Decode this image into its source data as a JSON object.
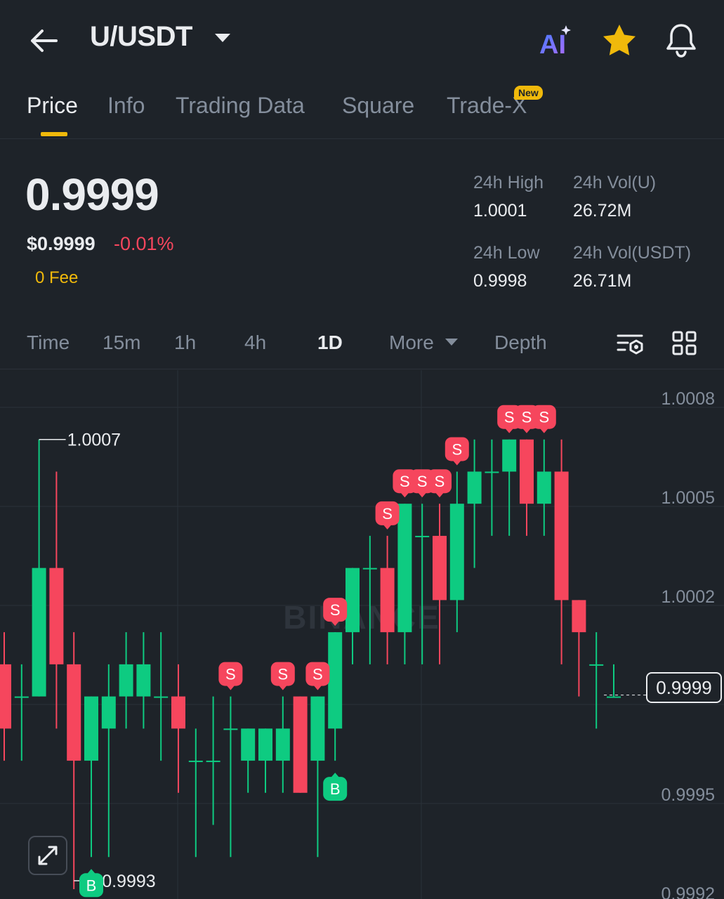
{
  "header": {
    "pair": "U/USDT",
    "ai_label": "AI"
  },
  "tabs": [
    {
      "label": "Price",
      "active": true
    },
    {
      "label": "Info"
    },
    {
      "label": "Trading Data"
    },
    {
      "label": "Square"
    },
    {
      "label": "Trade-X",
      "badge": "New"
    }
  ],
  "ticker": {
    "last_price": "0.9999",
    "usd_price": "$0.9999",
    "change_pct": "-0.01%",
    "fee_label": "0 Fee",
    "high_label": "24h High",
    "high_value": "1.0001",
    "vol_u_label": "24h Vol(U)",
    "vol_u_value": "26.72M",
    "low_label": "24h Low",
    "low_value": "0.9998",
    "vol_usdt_label": "24h Vol(USDT)",
    "vol_usdt_value": "26.71M"
  },
  "timeframes": [
    {
      "label": "Time"
    },
    {
      "label": "15m"
    },
    {
      "label": "1h"
    },
    {
      "label": "4h"
    },
    {
      "label": "1D",
      "active": true
    },
    {
      "label": "More"
    },
    {
      "label": "Depth"
    }
  ],
  "colors": {
    "up": "#0ecb81",
    "down": "#f6465d",
    "accent": "#f0b90b",
    "background": "#1e2329"
  },
  "icons": [
    "back-arrow-icon",
    "dropdown-caret-icon",
    "ai-icon",
    "star-icon",
    "bell-icon",
    "chart-settings-icon",
    "grid-layout-icon",
    "expand-icon"
  ],
  "chart_data": {
    "type": "candlestick",
    "watermark": "BINANCE",
    "y_ticks": [
      "1.0008",
      "1.0005",
      "1.0002",
      "0.9999",
      "0.9995",
      "0.9992"
    ],
    "ylim": [
      0.9992,
      1.0008
    ],
    "current_price": "0.9999",
    "max_label": "1.0007",
    "min_label": "0.9993",
    "candles": [
      {
        "o": 1.0,
        "h": 1.0001,
        "l": 0.9997,
        "c": 0.9998
      },
      {
        "o": 0.9999,
        "h": 1.0,
        "l": 0.9997,
        "c": 0.9999
      },
      {
        "o": 0.9999,
        "h": 1.0007,
        "l": 0.9999,
        "c": 1.0003
      },
      {
        "o": 1.0003,
        "h": 1.0006,
        "l": 0.9998,
        "c": 1.0
      },
      {
        "o": 1.0,
        "h": 1.0001,
        "l": 0.9993,
        "c": 0.9997
      },
      {
        "o": 0.9997,
        "h": 0.9999,
        "l": 0.9994,
        "c": 0.9999
      },
      {
        "o": 0.9998,
        "h": 1.0,
        "l": 0.9994,
        "c": 0.9999
      },
      {
        "o": 0.9999,
        "h": 1.0001,
        "l": 0.9998,
        "c": 1.0
      },
      {
        "o": 0.9999,
        "h": 1.0001,
        "l": 0.9998,
        "c": 1.0
      },
      {
        "o": 0.9999,
        "h": 1.0001,
        "l": 0.9997,
        "c": 0.9999
      },
      {
        "o": 0.9999,
        "h": 1.0,
        "l": 0.9996,
        "c": 0.9998
      },
      {
        "o": 0.9997,
        "h": 0.9998,
        "l": 0.9994,
        "c": 0.9997
      },
      {
        "o": 0.9997,
        "h": 0.9999,
        "l": 0.9995,
        "c": 0.9997
      },
      {
        "o": 0.9998,
        "h": 0.9999,
        "l": 0.9994,
        "c": 0.9998
      },
      {
        "o": 0.9997,
        "h": 0.9998,
        "l": 0.9996,
        "c": 0.9998
      },
      {
        "o": 0.9997,
        "h": 0.9998,
        "l": 0.9996,
        "c": 0.9998
      },
      {
        "o": 0.9997,
        "h": 0.9999,
        "l": 0.9996,
        "c": 0.9998
      },
      {
        "o": 0.9999,
        "h": 0.9999,
        "l": 0.9996,
        "c": 0.9996
      },
      {
        "o": 0.9997,
        "h": 0.9999,
        "l": 0.9994,
        "c": 0.9999
      },
      {
        "o": 0.9998,
        "h": 1.0001,
        "l": 0.9997,
        "c": 1.0001
      },
      {
        "o": 1.0001,
        "h": 1.0003,
        "l": 1.0,
        "c": 1.0003
      },
      {
        "o": 1.0003,
        "h": 1.0004,
        "l": 1.0,
        "c": 1.0003
      },
      {
        "o": 1.0003,
        "h": 1.0004,
        "l": 1.0,
        "c": 1.0001
      },
      {
        "o": 1.0001,
        "h": 1.0005,
        "l": 1.0,
        "c": 1.0005
      },
      {
        "o": 1.0004,
        "h": 1.0005,
        "l": 1.0,
        "c": 1.0004
      },
      {
        "o": 1.0004,
        "h": 1.0005,
        "l": 1.0,
        "c": 1.0002
      },
      {
        "o": 1.0002,
        "h": 1.0006,
        "l": 1.0001,
        "c": 1.0005
      },
      {
        "o": 1.0005,
        "h": 1.0007,
        "l": 1.0003,
        "c": 1.0006
      },
      {
        "o": 1.0006,
        "h": 1.0007,
        "l": 1.0004,
        "c": 1.0006
      },
      {
        "o": 1.0006,
        "h": 1.0007,
        "l": 1.0004,
        "c": 1.0007
      },
      {
        "o": 1.0007,
        "h": 1.0007,
        "l": 1.0004,
        "c": 1.0005
      },
      {
        "o": 1.0005,
        "h": 1.0007,
        "l": 1.0004,
        "c": 1.0006
      },
      {
        "o": 1.0006,
        "h": 1.0007,
        "l": 1.0,
        "c": 1.0002
      },
      {
        "o": 1.0002,
        "h": 1.0002,
        "l": 0.9999,
        "c": 1.0001
      },
      {
        "o": 1.0,
        "h": 1.0001,
        "l": 0.9998,
        "c": 1.0
      },
      {
        "o": 0.9999,
        "h": 1.0,
        "l": 0.9999,
        "c": 0.9999
      }
    ],
    "markers": [
      {
        "candle": 5,
        "type": "B"
      },
      {
        "candle": 13,
        "type": "S"
      },
      {
        "candle": 16,
        "type": "S"
      },
      {
        "candle": 18,
        "type": "S"
      },
      {
        "candle": 19,
        "type": "B"
      },
      {
        "candle": 19,
        "type": "S"
      },
      {
        "candle": 22,
        "type": "S"
      },
      {
        "candle": 23,
        "type": "S"
      },
      {
        "candle": 24,
        "type": "S"
      },
      {
        "candle": 25,
        "type": "S"
      },
      {
        "candle": 26,
        "type": "S"
      },
      {
        "candle": 29,
        "type": "S"
      },
      {
        "candle": 30,
        "type": "S"
      },
      {
        "candle": 31,
        "type": "S"
      }
    ]
  }
}
